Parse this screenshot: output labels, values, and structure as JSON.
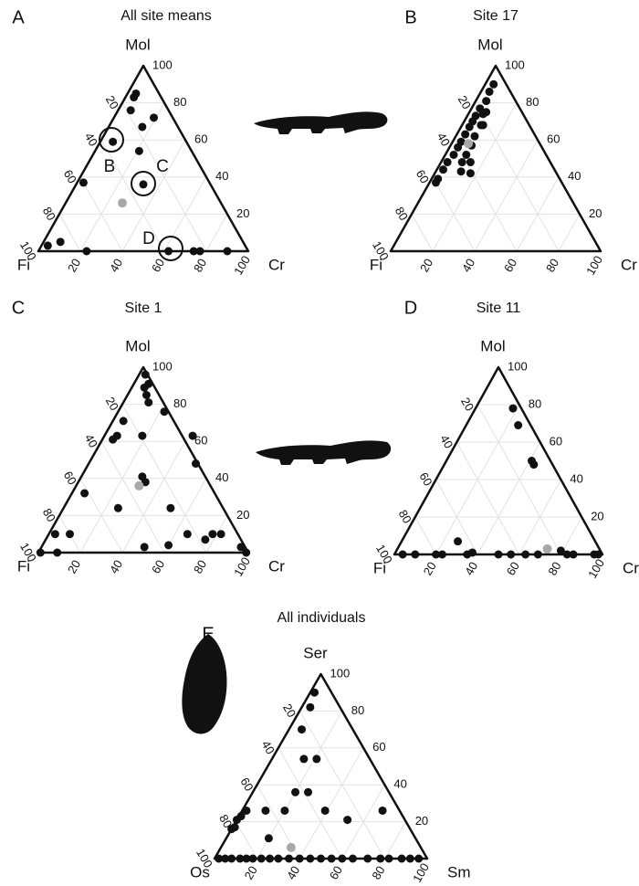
{
  "chart_data": [
    {
      "type": "ternary",
      "panel": "A",
      "title": "All site means",
      "top_label": "Mol",
      "left_label": "Fi",
      "right_label": "Cr",
      "ticks": [
        20,
        40,
        60,
        80,
        100
      ],
      "grid": true,
      "point_color": "#111111",
      "mean_color": "#a8a8a8",
      "points": {
        "top": [
          85,
          83,
          76,
          72,
          59,
          67,
          54,
          36,
          37,
          5,
          3,
          0,
          0,
          0,
          0,
          0
        ],
        "right": [
          4,
          4,
          6,
          19,
          6,
          16,
          21,
          32,
          3,
          8,
          3,
          23,
          62,
          74,
          77,
          90
        ]
      },
      "mean": {
        "top": 26,
        "right": 27
      },
      "annotations": [
        "B",
        "C",
        "D"
      ]
    },
    {
      "type": "ternary",
      "panel": "B",
      "title": "Site 17",
      "top_label": "Mol",
      "left_label": "Fi",
      "right_label": "Cr",
      "ticks": [
        20,
        40,
        60,
        80,
        100
      ],
      "grid": true,
      "point_color": "#111111",
      "mean_color": "#a8a8a8",
      "points": {
        "top": [
          90,
          86,
          81,
          77,
          73,
          70,
          67,
          63,
          59,
          56,
          52,
          48,
          44,
          39,
          37,
          74,
          75,
          68,
          68,
          62,
          57,
          52,
          48,
          48,
          43,
          42
        ],
        "right": [
          4,
          4,
          5,
          4,
          4,
          4,
          4,
          4,
          4,
          4,
          4,
          3,
          3,
          3,
          3,
          7,
          8,
          10,
          9,
          9,
          10,
          10,
          10,
          14,
          12,
          17
        ]
      },
      "mean": {
        "top": 58,
        "right": 8
      }
    },
    {
      "type": "ternary",
      "panel": "C",
      "title": "Site 1",
      "top_label": "Mol",
      "left_label": "Fi",
      "right_label": "Cr",
      "ticks": [
        20,
        40,
        60,
        80,
        100
      ],
      "grid": true,
      "point_color": "#111111",
      "mean_color": "#a8a8a8",
      "points": {
        "top": [
          96,
          91,
          89,
          85,
          81,
          71,
          63,
          61,
          63,
          76,
          63,
          48,
          41,
          38,
          32,
          24,
          24,
          10,
          10,
          10,
          10,
          10,
          7,
          3,
          4,
          3,
          0,
          0,
          0
        ],
        "right": [
          3,
          7,
          6,
          9,
          12,
          5,
          6,
          5,
          18,
          22,
          42,
          51,
          29,
          32,
          6,
          26,
          51,
          3,
          10,
          66,
          78,
          82,
          76,
          49,
          60,
          95,
          99,
          1,
          9
        ]
      },
      "mean": {
        "top": 36,
        "right": 30
      }
    },
    {
      "type": "ternary",
      "panel": "D",
      "title": "Site 11",
      "top_label": "Mol",
      "left_label": "Fi",
      "right_label": "Cr",
      "ticks": [
        20,
        40,
        60,
        80,
        100
      ],
      "grid": true,
      "point_color": "#111111",
      "mean_color": "#a8a8a8",
      "points": {
        "top": [
          78,
          69,
          50,
          48,
          7,
          0,
          0,
          0,
          0,
          0,
          1,
          0,
          0,
          0,
          0,
          2,
          0,
          0,
          0,
          0
        ],
        "right": [
          18,
          25,
          41,
          43,
          27,
          4,
          10,
          20,
          23,
          35,
          37,
          50,
          56,
          63,
          69,
          79,
          83,
          86,
          96,
          98
        ]
      },
      "mean": {
        "top": 3,
        "right": 72
      }
    },
    {
      "type": "ternary",
      "panel": "E",
      "title": "All individuals",
      "top_label": "Ser",
      "left_label": "Os",
      "right_label": "Sm",
      "ticks": [
        20,
        40,
        60,
        80,
        100
      ],
      "grid": true,
      "point_color": "#111111",
      "mean_color": "#a8a8a8",
      "points": {
        "top": [
          90,
          82,
          70,
          54,
          54,
          36,
          36,
          26,
          26,
          26,
          23,
          21,
          17,
          16,
          11,
          26,
          21,
          26,
          0,
          0,
          0,
          0,
          0,
          0,
          0,
          0,
          0,
          0,
          0,
          0,
          0,
          0,
          0,
          0,
          0,
          0,
          0,
          0,
          0,
          0
        ],
        "right": [
          2,
          4,
          6,
          15,
          21,
          20,
          26,
          20,
          11,
          2,
          1,
          0,
          1,
          0,
          20,
          39,
          52,
          66,
          2,
          5,
          8,
          12,
          15,
          18,
          22,
          26,
          30,
          35,
          40,
          45,
          50,
          55,
          60,
          65,
          72,
          78,
          82,
          88,
          92,
          96
        ]
      },
      "mean": {
        "top": 6,
        "right": 33
      }
    }
  ]
}
